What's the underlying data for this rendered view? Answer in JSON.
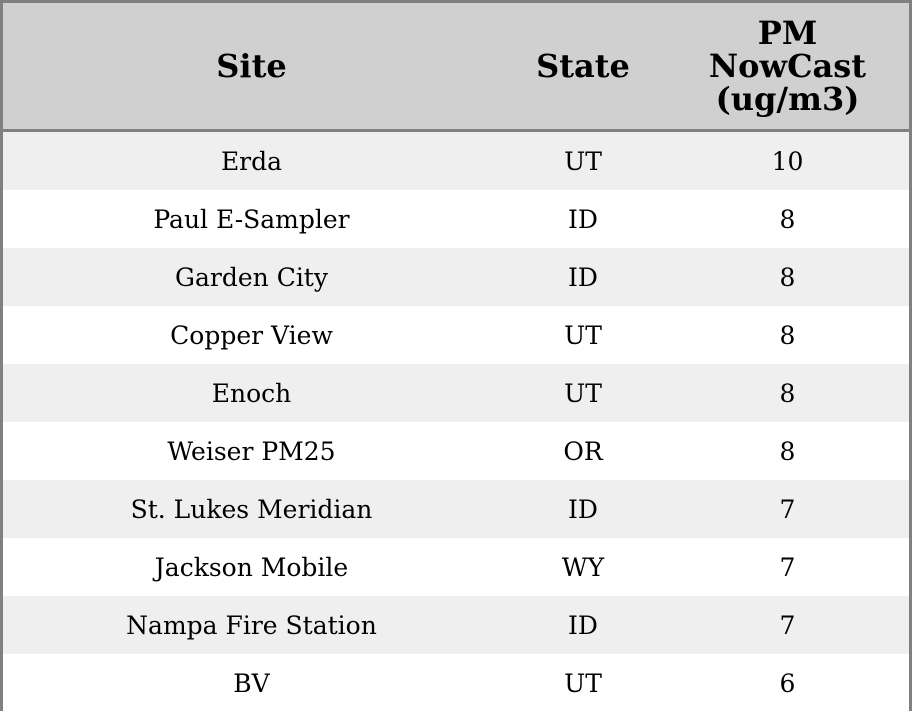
{
  "chart_data": {
    "type": "table",
    "columns": [
      "Site",
      "State",
      "PM NowCast (ug/m3)"
    ],
    "header_lines": [
      [
        "Site"
      ],
      [
        "State"
      ],
      [
        "PM",
        "NowCast",
        "(ug/m3)"
      ]
    ],
    "rows": [
      [
        "Erda",
        "UT",
        "10"
      ],
      [
        "Paul E-Sampler",
        "ID",
        "8"
      ],
      [
        "Garden City",
        "ID",
        "8"
      ],
      [
        "Copper View",
        "UT",
        "8"
      ],
      [
        "Enoch",
        "UT",
        "8"
      ],
      [
        "Weiser PM25",
        "OR",
        "8"
      ],
      [
        "St. Lukes Meridian",
        "ID",
        "7"
      ],
      [
        "Jackson Mobile",
        "WY",
        "7"
      ],
      [
        "Nampa Fire Station",
        "ID",
        "7"
      ],
      [
        "BV",
        "UT",
        "6"
      ]
    ],
    "colors": {
      "header_bg": "#d0d0d0",
      "row_alt_bg": "#efefef",
      "row_bg": "#ffffff",
      "border": "#808080"
    }
  }
}
